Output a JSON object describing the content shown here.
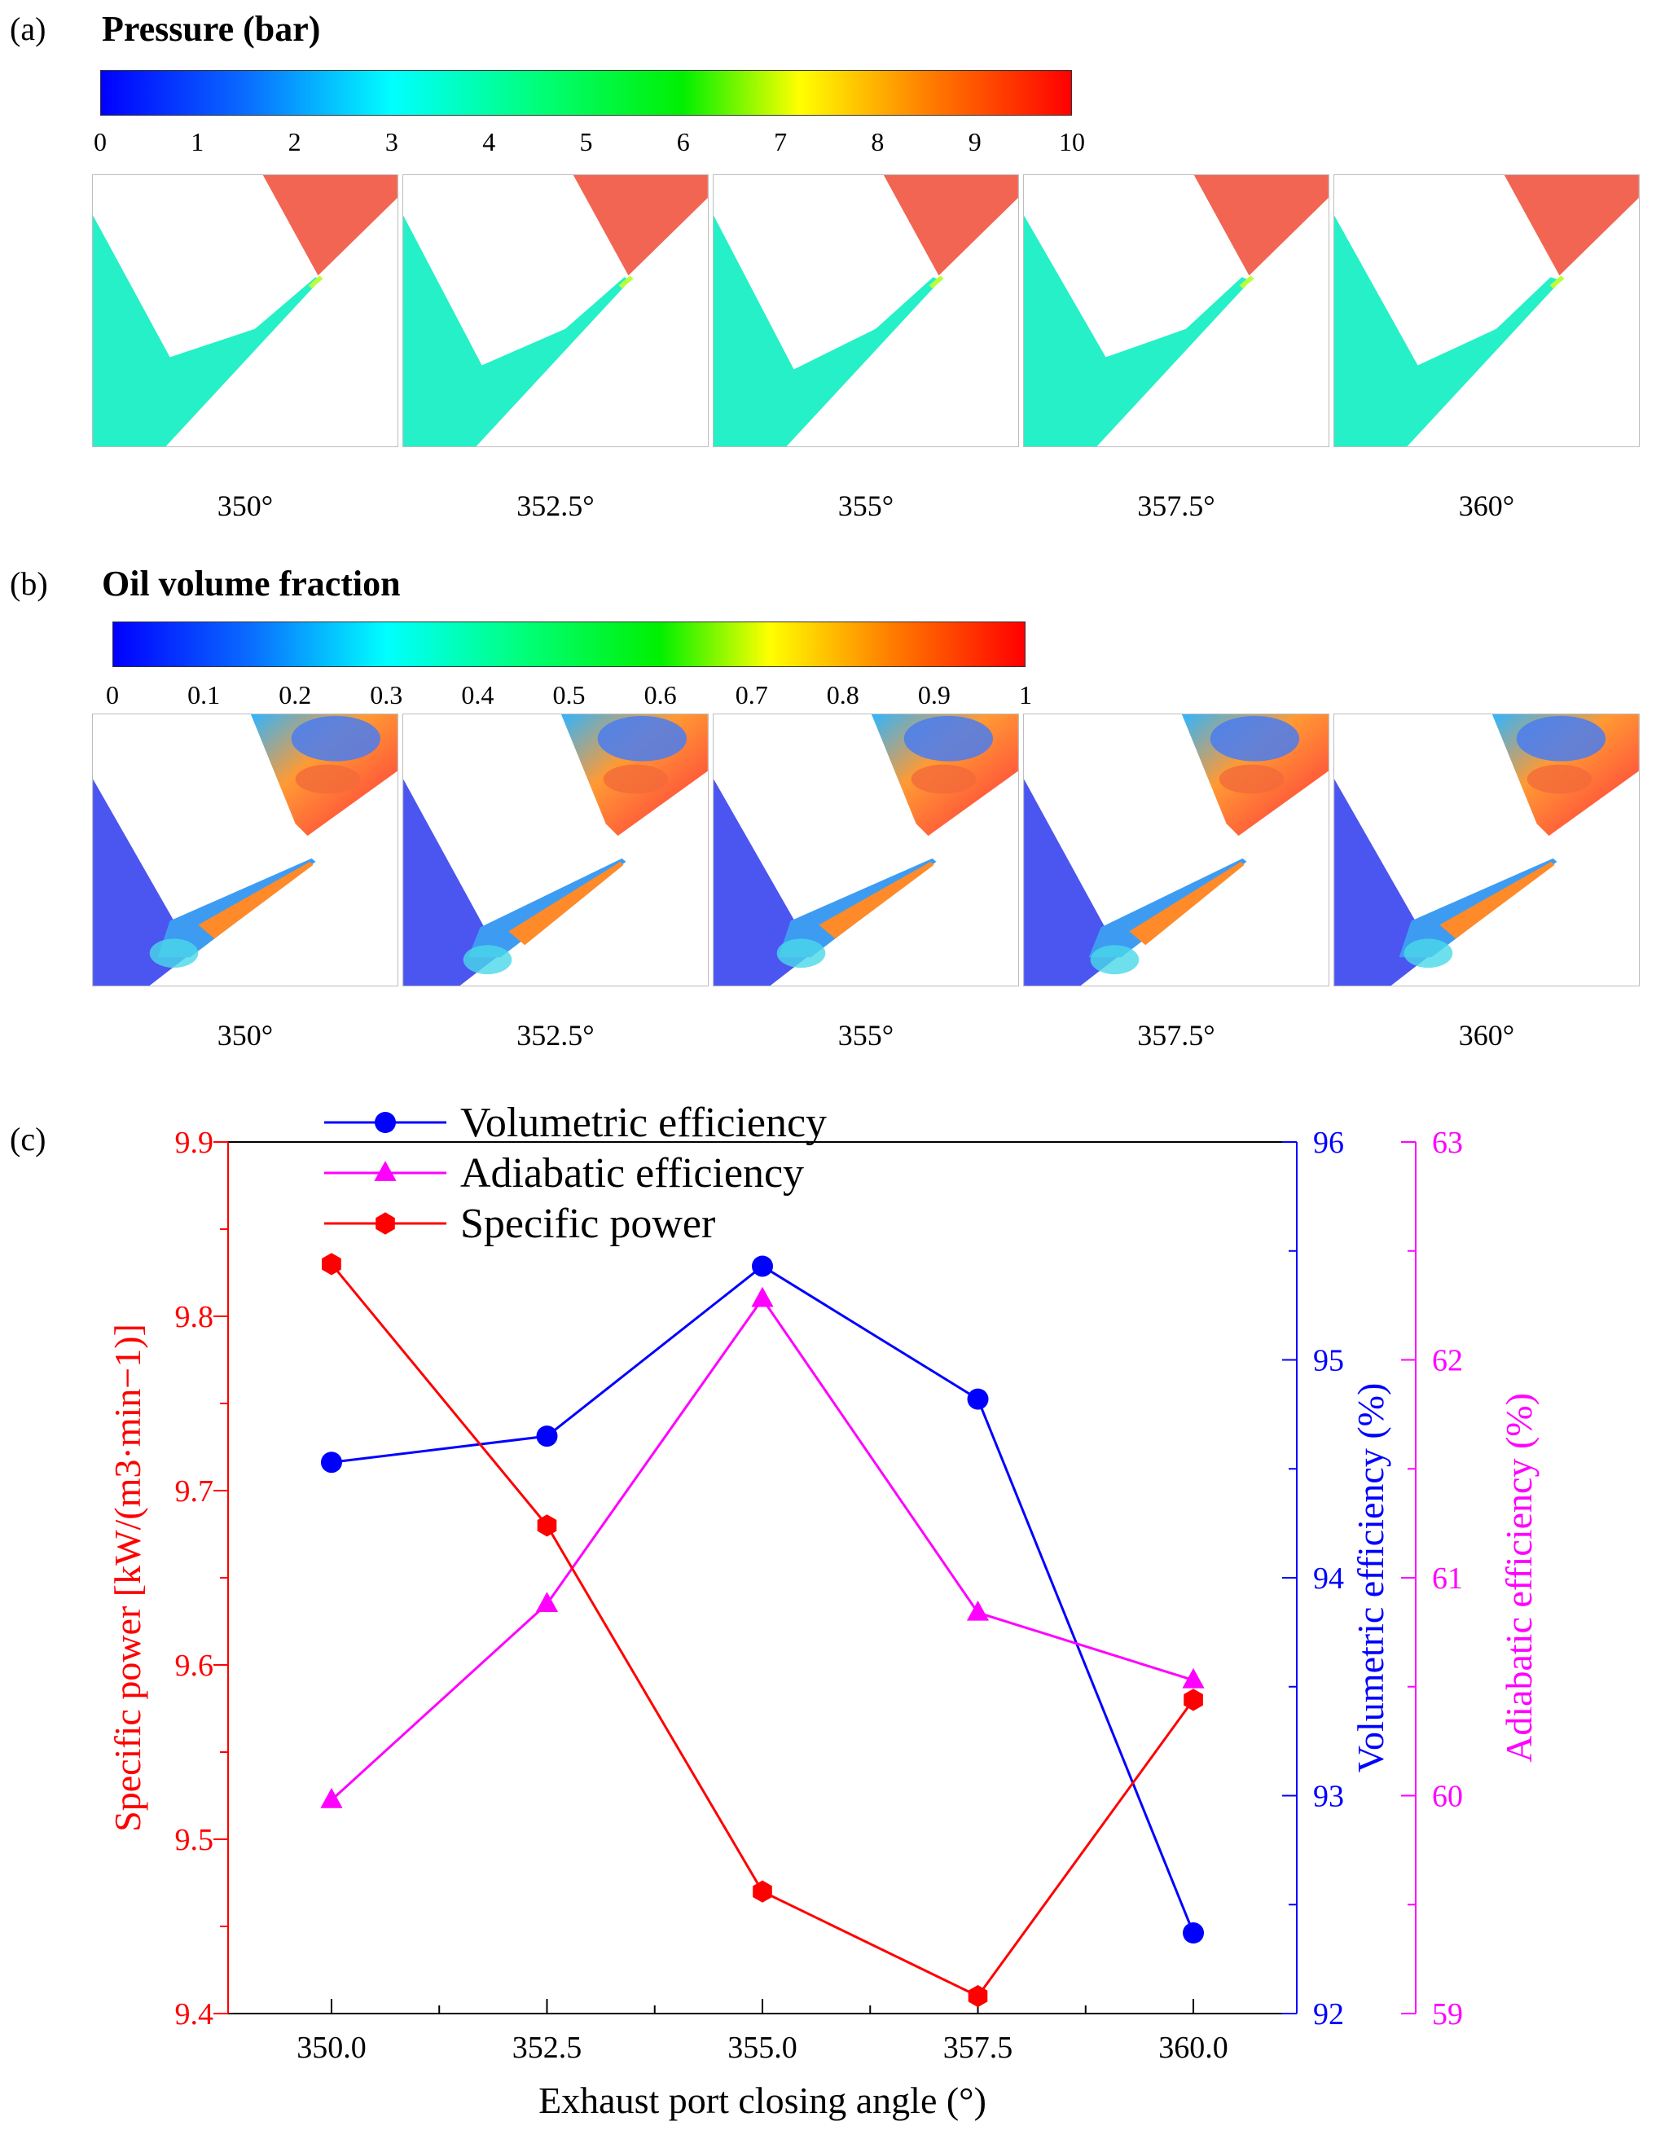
{
  "panel_a": {
    "label": "(a)",
    "title": "Pressure (bar)",
    "ticks": [
      "0",
      "1",
      "2",
      "3",
      "4",
      "5",
      "6",
      "7",
      "8",
      "9",
      "10"
    ]
  },
  "panel_b": {
    "label": "(b)",
    "title": "Oil volume fraction",
    "ticks": [
      "0",
      "0.1",
      "0.2",
      "0.3",
      "0.4",
      "0.5",
      "0.6",
      "0.7",
      "0.8",
      "0.9",
      "1"
    ]
  },
  "angles": [
    "350°",
    "352.5°",
    "355°",
    "357.5°",
    "360°"
  ],
  "colors": {
    "pressure_high": "#f26552",
    "pressure_low": "#25f0c8",
    "oil_low": "#4b55f0",
    "specific_power": "#ff0000",
    "volumetric": "#0000ff",
    "adiabatic": "#ff00ff"
  },
  "panel_c": {
    "label": "(c)"
  },
  "chart_data": {
    "type": "line",
    "xlabel": "Exhaust port closing angle  (°)",
    "x": [
      350.0,
      352.5,
      355.0,
      357.5,
      360.0
    ],
    "xticks": [
      "350.0",
      "352.5",
      "355.0",
      "357.5",
      "360.0"
    ],
    "xlim": [
      348.8,
      361.2
    ],
    "axes": {
      "left": {
        "label": "Specific power [kW/(m3·min−1)]",
        "ylim": [
          9.4,
          9.9
        ],
        "ticks": [
          "9.4",
          "9.5",
          "9.6",
          "9.7",
          "9.8",
          "9.9"
        ]
      },
      "right1": {
        "label": "Volumetric  efficiency (%)",
        "ylim": [
          92,
          96
        ],
        "ticks": [
          "92",
          "93",
          "94",
          "95",
          "96"
        ]
      },
      "right2": {
        "label": "Adiabatic efficiency (%)",
        "ylim": [
          59,
          63
        ],
        "ticks": [
          "59",
          "60",
          "61",
          "62",
          "63"
        ]
      }
    },
    "series": [
      {
        "name": "Volumetric  efficiency",
        "axis": "right1",
        "marker": "circle",
        "values": [
          94.53,
          94.65,
          95.43,
          94.82,
          92.37
        ]
      },
      {
        "name": "Adiabatic efficiency",
        "axis": "right2",
        "marker": "triangle",
        "values": [
          59.98,
          60.88,
          62.28,
          60.84,
          60.53
        ]
      },
      {
        "name": "Specific power",
        "axis": "left",
        "marker": "hexagon",
        "values": [
          9.83,
          9.68,
          9.47,
          9.41,
          9.58
        ]
      }
    ],
    "legend": "top-left"
  }
}
